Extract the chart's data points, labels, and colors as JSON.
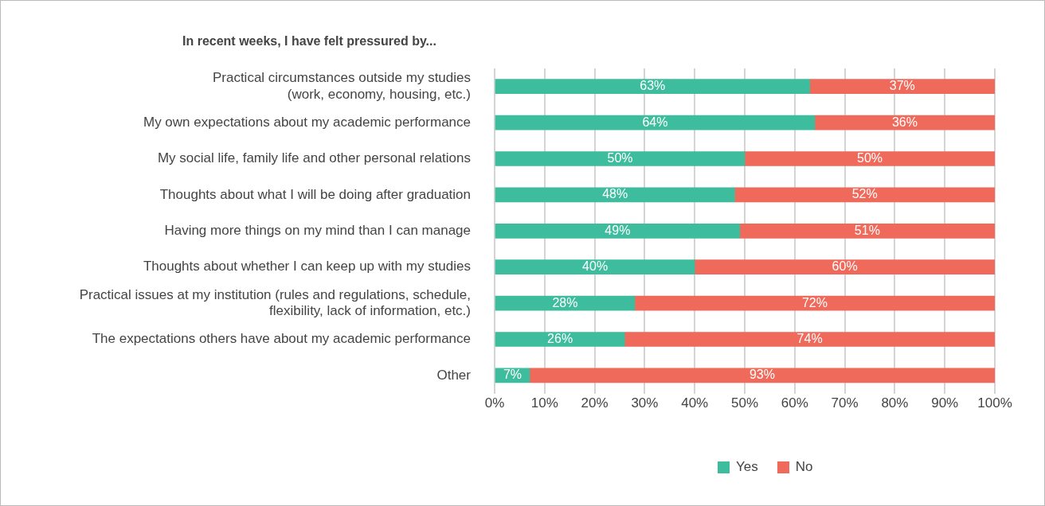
{
  "chart_data": {
    "type": "bar",
    "orientation": "horizontal",
    "stacked": true,
    "title": "In recent weeks, I have felt pressured by...",
    "categories": [
      "Practical circumstances outside my studies\n(work, economy, housing, etc.)",
      "My own expectations about my academic performance",
      "My social life, family life and other personal relations",
      "Thoughts about what I will be doing after graduation",
      "Having more things on my mind than I can manage",
      "Thoughts about whether I can keep up with my studies",
      "Practical issues at my institution (rules and regulations, schedule,\nflexibility, lack of information, etc.)",
      "The expectations others have about my academic performance",
      "Other"
    ],
    "series": [
      {
        "name": "Yes",
        "color": "#3dbd9d",
        "values": [
          63,
          64,
          50,
          48,
          49,
          40,
          28,
          26,
          7
        ],
        "value_labels": [
          "63%",
          "64%",
          "50%",
          "48%",
          "49%",
          "40%",
          "28%",
          "26%",
          "7%"
        ]
      },
      {
        "name": "No",
        "color": "#f06a5c",
        "values": [
          37,
          36,
          50,
          52,
          51,
          60,
          72,
          74,
          93
        ],
        "value_labels": [
          "37%",
          "36%",
          "50%",
          "52%",
          "51%",
          "60%",
          "72%",
          "74%",
          "93%"
        ]
      }
    ],
    "xlim": [
      0,
      100
    ],
    "xticks": [
      {
        "value": 0,
        "label": "0%"
      },
      {
        "value": 10,
        "label": "10%"
      },
      {
        "value": 20,
        "label": "20%"
      },
      {
        "value": 30,
        "label": "30%"
      },
      {
        "value": 40,
        "label": "40%"
      },
      {
        "value": 50,
        "label": "50%"
      },
      {
        "value": 60,
        "label": "60%"
      },
      {
        "value": 70,
        "label": "70%"
      },
      {
        "value": 80,
        "label": "80%"
      },
      {
        "value": 90,
        "label": "90%"
      },
      {
        "value": 100,
        "label": "100%"
      }
    ],
    "grid": "x",
    "legend": "bottom"
  }
}
